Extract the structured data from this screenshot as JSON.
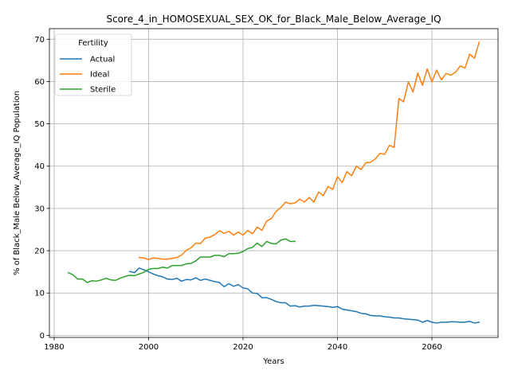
{
  "chart_data": {
    "type": "line",
    "title": "Score_4_in_HOMOSEXUAL_SEX_OK_for_Black_Male_Below_Average_IQ",
    "xlabel": "Years",
    "ylabel": "% of Black_Male Below_Average_IQ Population",
    "xlim": [
      1979,
      2074
    ],
    "ylim": [
      -0.5,
      72.5
    ],
    "x_ticks": [
      1980,
      2000,
      2020,
      2040,
      2060
    ],
    "y_ticks": [
      0,
      10,
      20,
      30,
      40,
      50,
      60,
      70
    ],
    "grid": true,
    "legend": {
      "title": "Fertility",
      "position": "top-left"
    },
    "series": [
      {
        "name": "Actual",
        "color": "#1f77b4",
        "x": [
          1996,
          1997,
          1998,
          1999,
          2000,
          2001,
          2002,
          2003,
          2004,
          2005,
          2006,
          2007,
          2008,
          2009,
          2010,
          2011,
          2012,
          2013,
          2014,
          2015,
          2016,
          2017,
          2018,
          2019,
          2020,
          2021,
          2022,
          2023,
          2024,
          2025,
          2026,
          2027,
          2028,
          2029,
          2030,
          2031,
          2032,
          2033,
          2034,
          2035,
          2036,
          2037,
          2038,
          2039,
          2040,
          2041,
          2042,
          2043,
          2044,
          2045,
          2046,
          2047,
          2048,
          2049,
          2050,
          2051,
          2052,
          2053,
          2054,
          2055,
          2056,
          2057,
          2058,
          2059,
          2060,
          2061,
          2062,
          2063,
          2064,
          2065,
          2066,
          2067,
          2068,
          2069,
          2070
        ],
        "values": [
          15.1,
          14.8,
          15.9,
          15.5,
          15.0,
          14.5,
          14.1,
          13.8,
          13.3,
          13.2,
          13.5,
          12.8,
          13.2,
          13.1,
          13.6,
          13.0,
          13.3,
          13.0,
          12.7,
          12.5,
          11.5,
          12.2,
          11.6,
          12.0,
          11.2,
          11.0,
          10.0,
          9.9,
          8.9,
          8.9,
          8.5,
          8.0,
          7.7,
          7.7,
          6.9,
          7.0,
          6.7,
          6.9,
          6.9,
          7.1,
          7.0,
          6.9,
          6.8,
          6.6,
          6.8,
          6.2,
          6.0,
          5.8,
          5.6,
          5.2,
          5.1,
          4.7,
          4.6,
          4.6,
          4.4,
          4.3,
          4.1,
          4.1,
          3.9,
          3.8,
          3.7,
          3.6,
          3.1,
          3.5,
          3.1,
          2.9,
          3.1,
          3.1,
          3.2,
          3.2,
          3.1,
          3.1,
          3.3,
          2.9,
          3.1
        ]
      },
      {
        "name": "Ideal",
        "color": "#ff7f0e",
        "x": [
          1998,
          1999,
          2000,
          2001,
          2002,
          2003,
          2004,
          2005,
          2006,
          2007,
          2008,
          2009,
          2010,
          2011,
          2012,
          2013,
          2014,
          2015,
          2016,
          2017,
          2018,
          2019,
          2020,
          2021,
          2022,
          2023,
          2024,
          2025,
          2026,
          2027,
          2028,
          2029,
          2030,
          2031,
          2032,
          2033,
          2034,
          2035,
          2036,
          2037,
          2038,
          2039,
          2040,
          2041,
          2042,
          2043,
          2044,
          2045,
          2046,
          2047,
          2048,
          2049,
          2050,
          2051,
          2052,
          2053,
          2054,
          2055,
          2056,
          2057,
          2058,
          2059,
          2060,
          2061,
          2062,
          2063,
          2064,
          2065,
          2066,
          2067,
          2068,
          2069,
          2070
        ],
        "values": [
          18.4,
          18.3,
          17.9,
          18.3,
          18.2,
          18.0,
          18.0,
          18.2,
          18.4,
          19.0,
          20.1,
          20.7,
          21.8,
          21.7,
          23.0,
          23.2,
          23.8,
          24.7,
          24.1,
          24.6,
          23.7,
          24.4,
          23.7,
          24.8,
          24.0,
          25.6,
          24.8,
          27.0,
          27.6,
          29.3,
          30.2,
          31.5,
          31.1,
          31.3,
          32.2,
          31.5,
          32.6,
          31.5,
          33.9,
          33.0,
          35.2,
          34.5,
          37.5,
          36.1,
          38.7,
          37.7,
          40.0,
          39.2,
          40.8,
          40.9,
          41.7,
          43.0,
          42.8,
          44.9,
          44.4,
          56.0,
          55.2,
          59.9,
          57.5,
          62.0,
          59.1,
          63.0,
          59.9,
          62.7,
          60.4,
          61.9,
          61.5,
          62.2,
          63.7,
          63.2,
          66.5,
          65.5,
          69.3
        ]
      },
      {
        "name": "Sterile",
        "color": "#2ca02c",
        "x": [
          1983,
          1984,
          1985,
          1986,
          1987,
          1988,
          1989,
          1990,
          1991,
          1992,
          1993,
          1994,
          1995,
          1996,
          1997,
          1998,
          1999,
          2000,
          2001,
          2002,
          2003,
          2004,
          2005,
          2006,
          2007,
          2008,
          2009,
          2010,
          2011,
          2012,
          2013,
          2014,
          2015,
          2016,
          2017,
          2018,
          2019,
          2020,
          2021,
          2022,
          2023,
          2024,
          2025,
          2026,
          2027,
          2028,
          2029,
          2030,
          2031,
          2032
        ],
        "values": [
          14.8,
          14.3,
          13.3,
          13.3,
          12.5,
          12.9,
          12.8,
          13.1,
          13.5,
          13.1,
          13.0,
          13.5,
          13.9,
          14.2,
          14.1,
          14.5,
          14.9,
          15.6,
          15.8,
          15.8,
          16.1,
          15.9,
          16.5,
          16.5,
          16.5,
          16.9,
          17.0,
          17.6,
          18.5,
          18.5,
          18.5,
          18.9,
          18.9,
          18.6,
          19.3,
          19.3,
          19.4,
          19.8,
          20.5,
          20.8,
          21.8,
          21.0,
          22.2,
          21.7,
          21.6,
          22.5,
          22.8,
          22.2,
          22.2,
          null
        ]
      }
    ]
  }
}
